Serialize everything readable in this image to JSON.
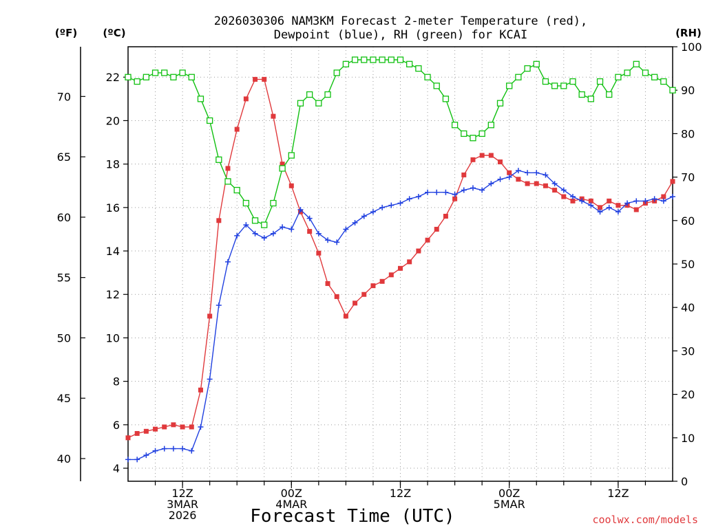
{
  "chart_data": {
    "type": "line",
    "title_lines": [
      "2026030306 NAM3KM Forecast 2-meter Temperature (red),",
      "Dewpoint (blue), RH (green) for KCAI"
    ],
    "xlabel": "Forecast Time (UTC)",
    "credit": "coolwx.com/models",
    "axis_units": {
      "f": "(ºF)",
      "c": "(ºC)",
      "rh": "(RH)"
    },
    "x_unit": "forecast hour from 2026-03-03 06Z",
    "xlim": [
      6,
      66
    ],
    "x_ticks": [
      {
        "hour": 12,
        "lines": [
          "12Z",
          "3MAR",
          "2026"
        ]
      },
      {
        "hour": 24,
        "lines": [
          "00Z",
          "4MAR"
        ]
      },
      {
        "hour": 36,
        "lines": [
          "12Z"
        ]
      },
      {
        "hour": 48,
        "lines": [
          "00Z",
          "5MAR"
        ]
      },
      {
        "hour": 60,
        "lines": [
          "12Z"
        ]
      }
    ],
    "y_celsius": {
      "ylim": [
        3.4,
        23.4
      ],
      "ticks": [
        4,
        6,
        8,
        10,
        12,
        14,
        16,
        18,
        20,
        22
      ]
    },
    "y_fahrenheit": {
      "ticks": [
        40,
        45,
        50,
        55,
        60,
        65,
        70
      ]
    },
    "y_rh": {
      "ylim": [
        0,
        100
      ],
      "ticks": [
        0,
        10,
        20,
        30,
        40,
        50,
        60,
        70,
        80,
        90,
        100
      ]
    },
    "grid": true,
    "x": [
      6,
      7,
      8,
      9,
      10,
      11,
      12,
      13,
      14,
      15,
      16,
      17,
      18,
      19,
      20,
      21,
      22,
      23,
      24,
      25,
      26,
      27,
      28,
      29,
      30,
      31,
      32,
      33,
      34,
      35,
      36,
      37,
      38,
      39,
      40,
      41,
      42,
      43,
      44,
      45,
      46,
      47,
      48,
      49,
      50,
      51,
      52,
      53,
      54,
      55,
      56,
      57,
      58,
      59,
      60,
      61,
      62,
      63,
      64,
      65,
      66
    ],
    "series": [
      {
        "name": "Temperature",
        "axis": "celsius",
        "color": "#e0393c",
        "marker": "filled-square",
        "values": [
          5.4,
          5.6,
          5.7,
          5.8,
          5.9,
          6.0,
          5.9,
          5.9,
          7.6,
          11.0,
          15.4,
          17.8,
          19.6,
          21.0,
          21.9,
          21.9,
          20.2,
          18.0,
          17.0,
          15.8,
          14.9,
          13.9,
          12.5,
          11.9,
          11.0,
          11.6,
          12.0,
          12.4,
          12.6,
          12.9,
          13.2,
          13.5,
          14.0,
          14.5,
          15.0,
          15.6,
          16.4,
          17.5,
          18.2,
          18.4,
          18.4,
          18.1,
          17.6,
          17.3,
          17.1,
          17.1,
          17.0,
          16.8,
          16.5,
          16.3,
          16.4,
          16.3,
          16.0,
          16.3,
          16.1,
          16.1,
          15.9,
          16.2,
          16.3,
          16.5,
          17.2
        ]
      },
      {
        "name": "Dewpoint",
        "axis": "celsius",
        "color": "#2040e0",
        "marker": "plus",
        "values": [
          4.4,
          4.4,
          4.6,
          4.8,
          4.9,
          4.9,
          4.9,
          4.8,
          5.9,
          8.1,
          11.5,
          13.5,
          14.7,
          15.2,
          14.8,
          14.6,
          14.8,
          15.1,
          15.0,
          15.9,
          15.5,
          14.8,
          14.5,
          14.4,
          15.0,
          15.3,
          15.6,
          15.8,
          16.0,
          16.1,
          16.2,
          16.4,
          16.5,
          16.7,
          16.7,
          16.7,
          16.6,
          16.8,
          16.9,
          16.8,
          17.1,
          17.3,
          17.4,
          17.7,
          17.6,
          17.6,
          17.5,
          17.1,
          16.8,
          16.5,
          16.3,
          16.1,
          15.8,
          16.0,
          15.8,
          16.2,
          16.3,
          16.3,
          16.4,
          16.3,
          16.5
        ]
      },
      {
        "name": "RH",
        "axis": "rh",
        "color": "#10c010",
        "marker": "open-square",
        "values": [
          93,
          92,
          93,
          94,
          94,
          93,
          94,
          93,
          88,
          83,
          74,
          69,
          67,
          64,
          60,
          59,
          64,
          72,
          75,
          87,
          89,
          87,
          89,
          94,
          96,
          97,
          97,
          97,
          97,
          97,
          97,
          96,
          95,
          93,
          91,
          88,
          82,
          80,
          79,
          80,
          82,
          87,
          91,
          93,
          95,
          96,
          92,
          91,
          91,
          92,
          89,
          88,
          92,
          89,
          93,
          94,
          96,
          94,
          93,
          92,
          90
        ]
      }
    ]
  }
}
